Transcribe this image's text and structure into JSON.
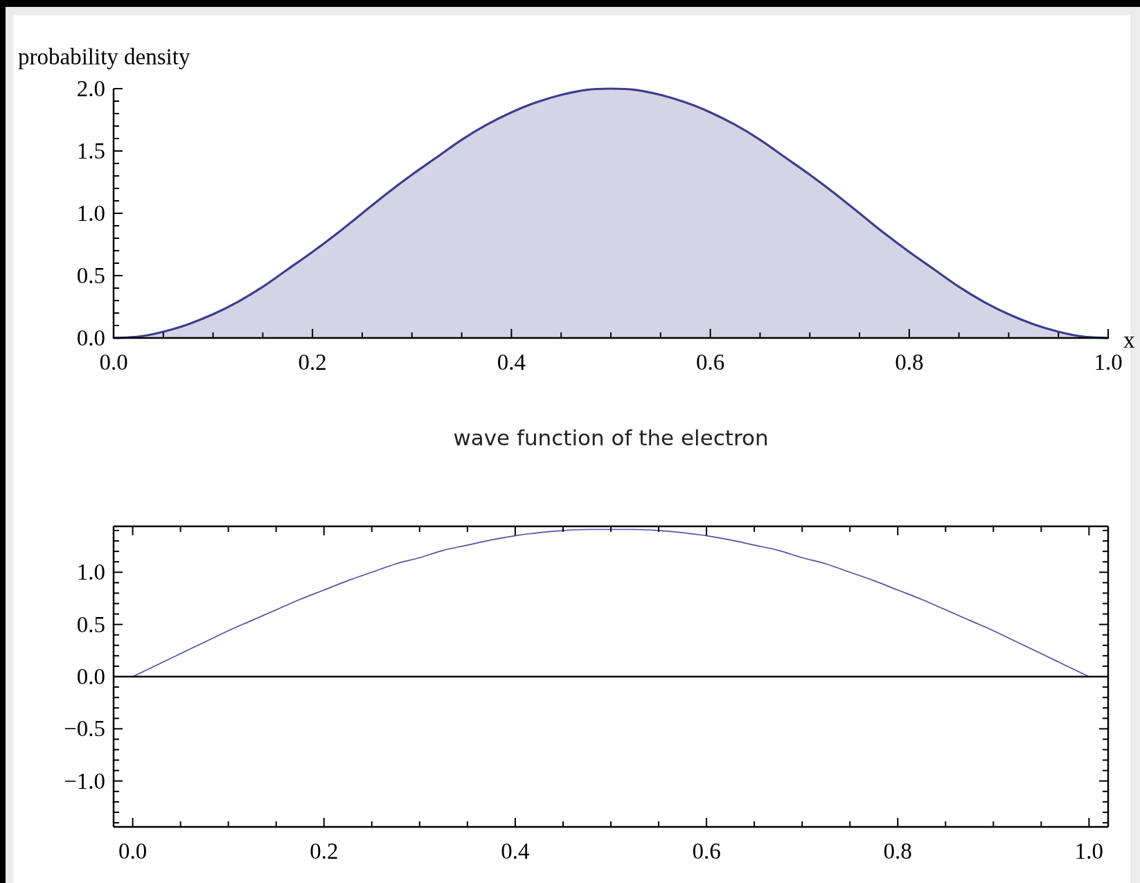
{
  "chart_data": [
    {
      "type": "area",
      "ylabel": "probability density",
      "xlabel": "x",
      "color": "#3d3d8e",
      "x": [
        0,
        0.025,
        0.05,
        0.075,
        0.1,
        0.125,
        0.15,
        0.175,
        0.2,
        0.225,
        0.25,
        0.275,
        0.3,
        0.325,
        0.35,
        0.375,
        0.4,
        0.425,
        0.45,
        0.475,
        0.5,
        0.525,
        0.55,
        0.575,
        0.6,
        0.625,
        0.65,
        0.675,
        0.7,
        0.725,
        0.75,
        0.775,
        0.8,
        0.825,
        0.85,
        0.875,
        0.9,
        0.925,
        0.95,
        0.975,
        1
      ],
      "values": [
        0,
        0.01,
        0.05,
        0.11,
        0.19,
        0.29,
        0.41,
        0.55,
        0.69,
        0.84,
        1,
        1.16,
        1.31,
        1.45,
        1.59,
        1.71,
        1.81,
        1.89,
        1.95,
        1.99,
        2,
        1.99,
        1.95,
        1.89,
        1.81,
        1.71,
        1.59,
        1.45,
        1.31,
        1.16,
        1,
        0.84,
        0.69,
        0.55,
        0.41,
        0.29,
        0.19,
        0.11,
        0.05,
        0.01,
        0
      ],
      "xlim": [
        0,
        1
      ],
      "ylim": [
        0,
        2
      ],
      "xticks": [
        {
          "value": 0,
          "label": "0.0"
        },
        {
          "value": 0.05,
          "label": null
        },
        {
          "value": 0.1,
          "label": null
        },
        {
          "value": 0.15,
          "label": null
        },
        {
          "value": 0.2,
          "label": "0.2"
        },
        {
          "value": 0.25,
          "label": null
        },
        {
          "value": 0.3,
          "label": null
        },
        {
          "value": 0.35,
          "label": null
        },
        {
          "value": 0.4,
          "label": "0.4"
        },
        {
          "value": 0.45,
          "label": null
        },
        {
          "value": 0.5,
          "label": null
        },
        {
          "value": 0.55,
          "label": null
        },
        {
          "value": 0.6,
          "label": "0.6"
        },
        {
          "value": 0.65,
          "label": null
        },
        {
          "value": 0.7,
          "label": null
        },
        {
          "value": 0.75,
          "label": null
        },
        {
          "value": 0.8,
          "label": "0.8"
        },
        {
          "value": 0.85,
          "label": null
        },
        {
          "value": 0.9,
          "label": null
        },
        {
          "value": 0.95,
          "label": null
        },
        {
          "value": 1,
          "label": "1.0"
        }
      ],
      "yticks": [
        {
          "value": 0,
          "label": "0.0"
        },
        {
          "value": 0.1,
          "label": null
        },
        {
          "value": 0.2,
          "label": null
        },
        {
          "value": 0.3,
          "label": null
        },
        {
          "value": 0.4,
          "label": null
        },
        {
          "value": 0.5,
          "label": "0.5"
        },
        {
          "value": 0.6,
          "label": null
        },
        {
          "value": 0.7,
          "label": null
        },
        {
          "value": 0.8,
          "label": null
        },
        {
          "value": 0.9,
          "label": null
        },
        {
          "value": 1,
          "label": "1.0"
        },
        {
          "value": 1.1,
          "label": null
        },
        {
          "value": 1.2,
          "label": null
        },
        {
          "value": 1.3,
          "label": null
        },
        {
          "value": 1.4,
          "label": null
        },
        {
          "value": 1.5,
          "label": "1.5"
        },
        {
          "value": 1.6,
          "label": null
        },
        {
          "value": 1.7,
          "label": null
        },
        {
          "value": 1.8,
          "label": null
        },
        {
          "value": 1.9,
          "label": null
        },
        {
          "value": 2,
          "label": "2.0"
        }
      ]
    },
    {
      "type": "line",
      "title": "wave function of the electron",
      "color": "#5252a6",
      "x": [
        0,
        0.025,
        0.05,
        0.075,
        0.1,
        0.125,
        0.15,
        0.175,
        0.2,
        0.225,
        0.25,
        0.275,
        0.3,
        0.325,
        0.35,
        0.375,
        0.4,
        0.425,
        0.45,
        0.475,
        0.5,
        0.525,
        0.55,
        0.575,
        0.6,
        0.625,
        0.65,
        0.675,
        0.7,
        0.725,
        0.75,
        0.775,
        0.8,
        0.825,
        0.85,
        0.875,
        0.9,
        0.925,
        0.95,
        0.975,
        1
      ],
      "values": [
        0,
        0.11,
        0.22,
        0.33,
        0.44,
        0.54,
        0.64,
        0.74,
        0.83,
        0.92,
        1,
        1.08,
        1.14,
        1.21,
        1.26,
        1.31,
        1.35,
        1.38,
        1.4,
        1.41,
        1.41,
        1.41,
        1.4,
        1.38,
        1.35,
        1.31,
        1.26,
        1.21,
        1.14,
        1.08,
        1,
        0.92,
        0.83,
        0.74,
        0.64,
        0.54,
        0.44,
        0.33,
        0.22,
        0.11,
        0
      ],
      "xlim": [
        -0.02,
        1.02
      ],
      "ylim": [
        -1.44,
        1.44
      ],
      "xticks": [
        {
          "value": 0,
          "label": "0.0"
        },
        {
          "value": 0.05,
          "label": null
        },
        {
          "value": 0.1,
          "label": null
        },
        {
          "value": 0.15,
          "label": null
        },
        {
          "value": 0.2,
          "label": "0.2"
        },
        {
          "value": 0.25,
          "label": null
        },
        {
          "value": 0.3,
          "label": null
        },
        {
          "value": 0.35,
          "label": null
        },
        {
          "value": 0.4,
          "label": "0.4"
        },
        {
          "value": 0.45,
          "label": null
        },
        {
          "value": 0.5,
          "label": null
        },
        {
          "value": 0.55,
          "label": null
        },
        {
          "value": 0.6,
          "label": "0.6"
        },
        {
          "value": 0.65,
          "label": null
        },
        {
          "value": 0.7,
          "label": null
        },
        {
          "value": 0.75,
          "label": null
        },
        {
          "value": 0.8,
          "label": "0.8"
        },
        {
          "value": 0.85,
          "label": null
        },
        {
          "value": 0.9,
          "label": null
        },
        {
          "value": 0.95,
          "label": null
        },
        {
          "value": 1,
          "label": "1.0"
        }
      ],
      "yticks": [
        {
          "value": -1.4,
          "label": null
        },
        {
          "value": -1.3,
          "label": null
        },
        {
          "value": -1.2,
          "label": null
        },
        {
          "value": -1.1,
          "label": null
        },
        {
          "value": -1,
          "label": "−1.0"
        },
        {
          "value": -0.9,
          "label": null
        },
        {
          "value": -0.8,
          "label": null
        },
        {
          "value": -0.7,
          "label": null
        },
        {
          "value": -0.6,
          "label": null
        },
        {
          "value": -0.5,
          "label": "−0.5"
        },
        {
          "value": -0.4,
          "label": null
        },
        {
          "value": -0.3,
          "label": null
        },
        {
          "value": -0.2,
          "label": null
        },
        {
          "value": -0.1,
          "label": null
        },
        {
          "value": 0,
          "label": "0.0"
        },
        {
          "value": 0.1,
          "label": null
        },
        {
          "value": 0.2,
          "label": null
        },
        {
          "value": 0.3,
          "label": null
        },
        {
          "value": 0.4,
          "label": null
        },
        {
          "value": 0.5,
          "label": "0.5"
        },
        {
          "value": 0.6,
          "label": null
        },
        {
          "value": 0.7,
          "label": null
        },
        {
          "value": 0.8,
          "label": null
        },
        {
          "value": 0.9,
          "label": null
        },
        {
          "value": 1,
          "label": "1.0"
        },
        {
          "value": 1.1,
          "label": null
        },
        {
          "value": 1.2,
          "label": null
        },
        {
          "value": 1.3,
          "label": null
        },
        {
          "value": 1.4,
          "label": null
        }
      ],
      "ref_lines": [
        {
          "axis": "y",
          "value": 0,
          "color": "#000000"
        }
      ]
    }
  ]
}
